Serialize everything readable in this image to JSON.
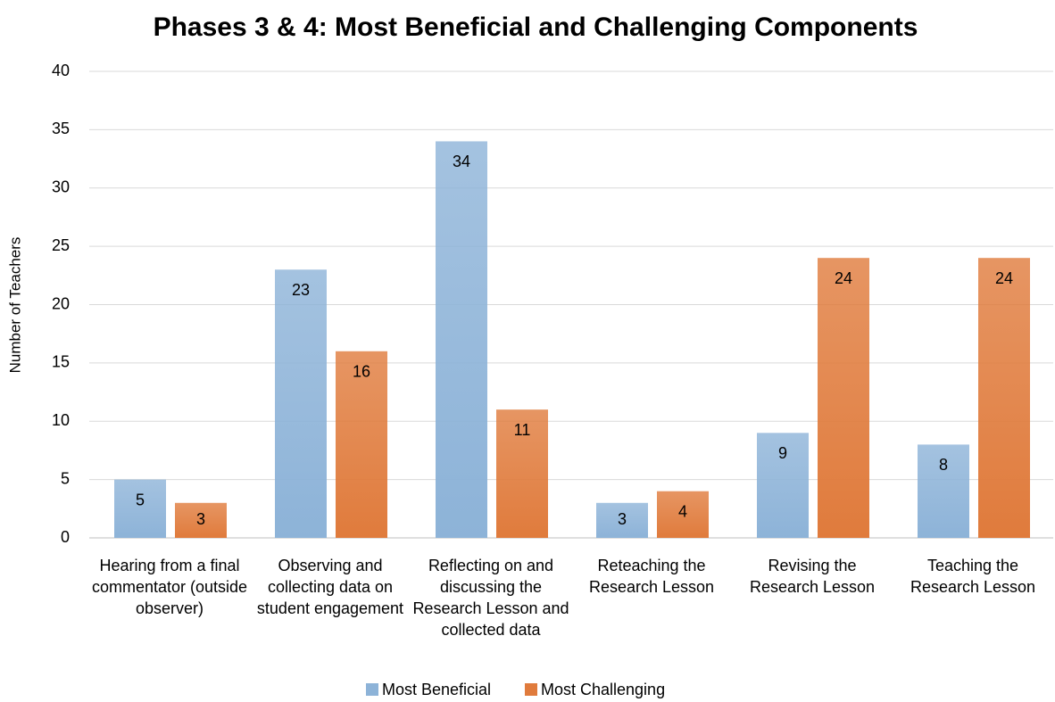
{
  "chart_data": {
    "type": "bar",
    "title": "Phases 3 & 4: Most Beneficial and Challenging Components",
    "y_label": "Number of Teachers",
    "categories": [
      "Hearing from a final commentator (outside observer)",
      "Observing and collecting data on student engagement",
      "Reflecting on and discussing the Research Lesson and collected data",
      "Reteaching the Research Lesson",
      "Revising the Research Lesson",
      "Teaching the Research Lesson"
    ],
    "series": [
      {
        "name": "Most Beneficial",
        "color": "#8db3d8",
        "values": [
          5,
          23,
          34,
          3,
          9,
          8
        ]
      },
      {
        "name": "Most Challenging",
        "color": "#e07b3c",
        "values": [
          3,
          16,
          11,
          4,
          24,
          24
        ]
      }
    ],
    "ylim": [
      0,
      40
    ],
    "yticks": [
      0,
      5,
      10,
      15,
      20,
      25,
      30,
      35,
      40
    ],
    "grid": true,
    "legend": "bottom"
  }
}
